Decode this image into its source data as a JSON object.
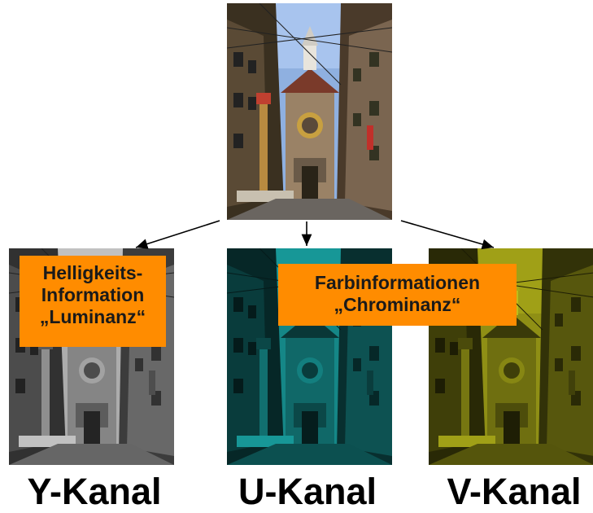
{
  "tinting": {
    "original": null,
    "y": "#888888",
    "u": "#1ec8c8",
    "v": "#c8c81e"
  },
  "luminance_box": {
    "line1": "Helligkeits-",
    "line2": "Information",
    "line3": "„Luminanz“",
    "color": "#ff8c00"
  },
  "chrominance_box": {
    "line1": "Farbinformationen",
    "line2": "„Chrominanz“",
    "color": "#ff8c00"
  },
  "channels": {
    "y": "Y-Kanal",
    "u": "U-Kanal",
    "v": "V-Kanal"
  }
}
